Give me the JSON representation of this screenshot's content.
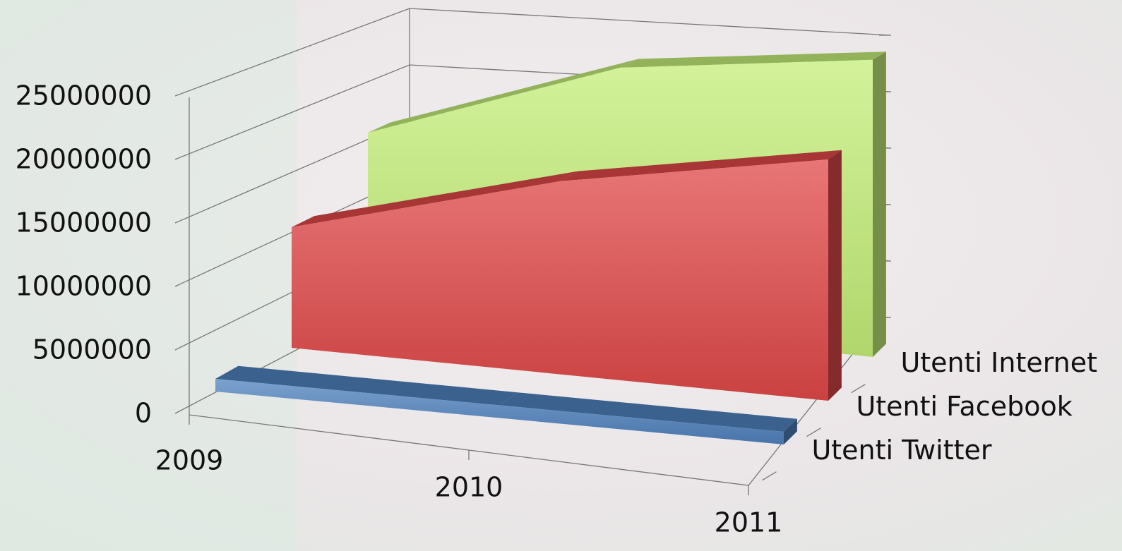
{
  "chart_data": {
    "type": "area3d",
    "categories": [
      "2009",
      "2010",
      "2011"
    ],
    "series": [
      {
        "name": "Utenti Twitter",
        "color": "#4f81bd",
        "values": [
          1000000,
          1000000,
          1000000
        ]
      },
      {
        "name": "Utenti Facebook",
        "color": "#e04848",
        "values": [
          10000000,
          16000000,
          20000000
        ]
      },
      {
        "name": "Utenti Internet",
        "color": "#c4ee78",
        "values": [
          15000000,
          23000000,
          26000000
        ]
      }
    ],
    "ylim": [
      0,
      25000000
    ],
    "yticks": [
      0,
      5000000,
      10000000,
      15000000,
      20000000,
      25000000
    ],
    "grid": true
  }
}
